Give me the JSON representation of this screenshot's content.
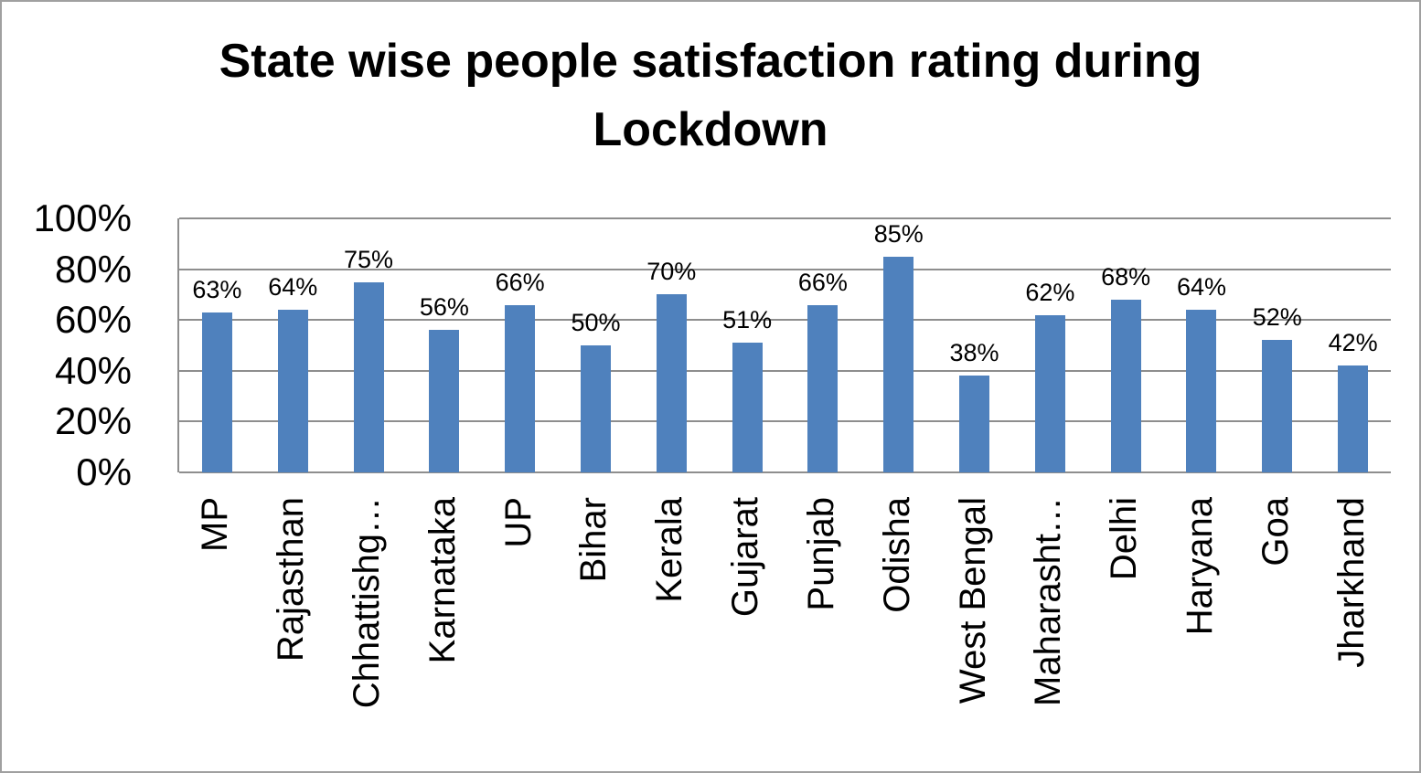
{
  "header": {
    "title_line1": "State wise people satisfaction rating during",
    "title_line2": "Lockdown"
  },
  "chart_data": {
    "type": "bar",
    "title": "State wise people satisfaction rating during Lockdown",
    "categories": [
      "MP",
      "Rajasthan",
      "Chhattishg…",
      "Karnataka",
      "UP",
      "Bihar",
      "Kerala",
      "Gujarat",
      "Punjab",
      "Odisha",
      "West Bengal",
      "Maharasht…",
      "Delhi",
      "Haryana",
      "Goa",
      "Jharkhand"
    ],
    "values": [
      63,
      64,
      75,
      56,
      66,
      50,
      70,
      51,
      66,
      85,
      38,
      62,
      68,
      64,
      52,
      42
    ],
    "data_labels": [
      "63%",
      "64%",
      "75%",
      "56%",
      "66%",
      "50%",
      "70%",
      "51%",
      "66%",
      "85%",
      "38%",
      "62%",
      "68%",
      "64%",
      "52%",
      "42%"
    ],
    "yticks": [
      "100%",
      "80%",
      "60%",
      "40%",
      "20%",
      "0%"
    ],
    "ytick_values": [
      100,
      80,
      60,
      40,
      20,
      0
    ],
    "ylim": [
      0,
      100
    ],
    "xlabel": "",
    "ylabel": "",
    "grid": true,
    "legend": false,
    "bar_color": "#4F81BD",
    "gridline_color": "#8e8e8e",
    "text_color": "#000000"
  }
}
